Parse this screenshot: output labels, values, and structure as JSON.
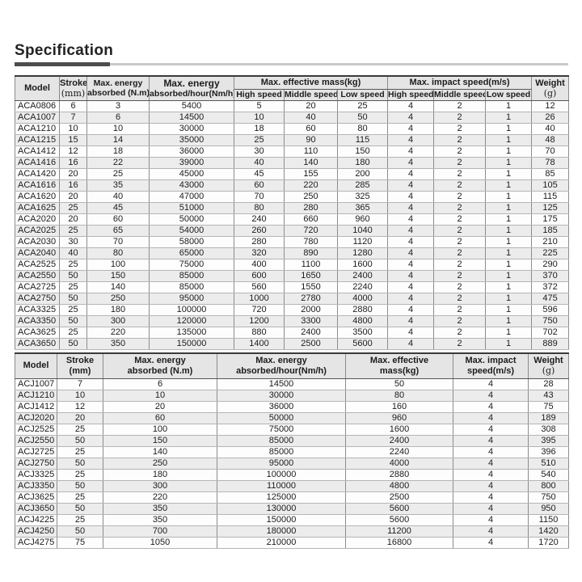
{
  "page": {
    "title": "Specification"
  },
  "table1": {
    "header": {
      "model": "Model",
      "stroke_line1": "Stroke",
      "stroke_line2": "(mm)",
      "energy_absorbed_line1": "Max. energy",
      "energy_absorbed_line2": "absorbed (N.m)",
      "energy_hour_line1": "Max. energy",
      "energy_hour_line2": "absorbed/hour(Nm/h)",
      "effective_mass_group": "Max. effective mass(kg)",
      "impact_speed_group": "Max. impact speed(m/s)",
      "high_speed": "High speed",
      "middle_speed": "Middle speed",
      "low_speed": "Low speed",
      "weight_line1": "Weight",
      "weight_line2": "(g)"
    },
    "rows": [
      [
        "ACA0806",
        "6",
        "3",
        "5400",
        "5",
        "20",
        "25",
        "4",
        "2",
        "1",
        "12"
      ],
      [
        "ACA1007",
        "7",
        "6",
        "14500",
        "10",
        "40",
        "50",
        "4",
        "2",
        "1",
        "26"
      ],
      [
        "ACA1210",
        "10",
        "10",
        "30000",
        "18",
        "60",
        "80",
        "4",
        "2",
        "1",
        "40"
      ],
      [
        "ACA1215",
        "15",
        "14",
        "35000",
        "25",
        "90",
        "115",
        "4",
        "2",
        "1",
        "48"
      ],
      [
        "ACA1412",
        "12",
        "18",
        "36000",
        "30",
        "110",
        "150",
        "4",
        "2",
        "1",
        "70"
      ],
      [
        "ACA1416",
        "16",
        "22",
        "39000",
        "40",
        "140",
        "180",
        "4",
        "2",
        "1",
        "78"
      ],
      [
        "ACA1420",
        "20",
        "25",
        "45000",
        "45",
        "155",
        "200",
        "4",
        "2",
        "1",
        "85"
      ],
      [
        "ACA1616",
        "16",
        "35",
        "43000",
        "60",
        "220",
        "285",
        "4",
        "2",
        "1",
        "105"
      ],
      [
        "ACA1620",
        "20",
        "40",
        "47000",
        "70",
        "250",
        "325",
        "4",
        "2",
        "1",
        "115"
      ],
      [
        "ACA1625",
        "25",
        "45",
        "51000",
        "80",
        "280",
        "365",
        "4",
        "2",
        "1",
        "125"
      ],
      [
        "ACA2020",
        "20",
        "60",
        "50000",
        "240",
        "660",
        "960",
        "4",
        "2",
        "1",
        "175"
      ],
      [
        "ACA2025",
        "25",
        "65",
        "54000",
        "260",
        "720",
        "1040",
        "4",
        "2",
        "1",
        "185"
      ],
      [
        "ACA2030",
        "30",
        "70",
        "58000",
        "280",
        "780",
        "1120",
        "4",
        "2",
        "1",
        "210"
      ],
      [
        "ACA2040",
        "40",
        "80",
        "65000",
        "320",
        "890",
        "1280",
        "4",
        "2",
        "1",
        "225"
      ],
      [
        "ACA2525",
        "25",
        "100",
        "75000",
        "400",
        "1100",
        "1600",
        "4",
        "2",
        "1",
        "290"
      ],
      [
        "ACA2550",
        "50",
        "150",
        "85000",
        "600",
        "1650",
        "2400",
        "4",
        "2",
        "1",
        "370"
      ],
      [
        "ACA2725",
        "25",
        "140",
        "85000",
        "560",
        "1550",
        "2240",
        "4",
        "2",
        "1",
        "372"
      ],
      [
        "ACA2750",
        "50",
        "250",
        "95000",
        "1000",
        "2780",
        "4000",
        "4",
        "2",
        "1",
        "475"
      ],
      [
        "ACA3325",
        "25",
        "180",
        "100000",
        "720",
        "2000",
        "2880",
        "4",
        "2",
        "1",
        "596"
      ],
      [
        "ACA3350",
        "50",
        "300",
        "120000",
        "1200",
        "3300",
        "4800",
        "4",
        "2",
        "1",
        "750"
      ],
      [
        "ACA3625",
        "25",
        "220",
        "135000",
        "880",
        "2400",
        "3500",
        "4",
        "2",
        "1",
        "702"
      ],
      [
        "ACA3650",
        "50",
        "350",
        "150000",
        "1400",
        "2500",
        "5600",
        "4",
        "2",
        "1",
        "889"
      ]
    ]
  },
  "table2": {
    "header": {
      "model": "Model",
      "stroke_line1": "Stroke",
      "stroke_line2": "(mm)",
      "energy_absorbed_line1": "Max. energy",
      "energy_absorbed_line2": "absorbed (N.m)",
      "energy_hour_line1": "Max. energy",
      "energy_hour_line2": "absorbed/hour(Nm/h)",
      "effective_mass_line1": "Max. effective",
      "effective_mass_line2": "mass(kg)",
      "impact_speed_line1": "Max. impact",
      "impact_speed_line2": "speed(m/s)",
      "weight_line1": "Weight",
      "weight_line2": "(g)"
    },
    "rows": [
      [
        "ACJ1007",
        "7",
        "6",
        "14500",
        "50",
        "4",
        "28"
      ],
      [
        "ACJ1210",
        "10",
        "10",
        "30000",
        "80",
        "4",
        "43"
      ],
      [
        "ACJ1412",
        "12",
        "20",
        "36000",
        "160",
        "4",
        "75"
      ],
      [
        "ACJ2020",
        "20",
        "60",
        "50000",
        "960",
        "4",
        "189"
      ],
      [
        "ACJ2525",
        "25",
        "100",
        "75000",
        "1600",
        "4",
        "308"
      ],
      [
        "ACJ2550",
        "50",
        "150",
        "85000",
        "2400",
        "4",
        "395"
      ],
      [
        "ACJ2725",
        "25",
        "140",
        "85000",
        "2240",
        "4",
        "396"
      ],
      [
        "ACJ2750",
        "50",
        "250",
        "95000",
        "4000",
        "4",
        "510"
      ],
      [
        "ACJ3325",
        "25",
        "180",
        "100000",
        "2880",
        "4",
        "540"
      ],
      [
        "ACJ3350",
        "50",
        "300",
        "110000",
        "4800",
        "4",
        "800"
      ],
      [
        "ACJ3625",
        "25",
        "220",
        "125000",
        "2500",
        "4",
        "750"
      ],
      [
        "ACJ3650",
        "50",
        "350",
        "130000",
        "5600",
        "4",
        "950"
      ],
      [
        "ACJ4225",
        "25",
        "350",
        "150000",
        "5600",
        "4",
        "1150"
      ],
      [
        "ACJ4250",
        "50",
        "700",
        "180000",
        "11200",
        "4",
        "1420"
      ],
      [
        "ACJ4275",
        "75",
        "1050",
        "210000",
        "16800",
        "4",
        "1720"
      ]
    ]
  }
}
